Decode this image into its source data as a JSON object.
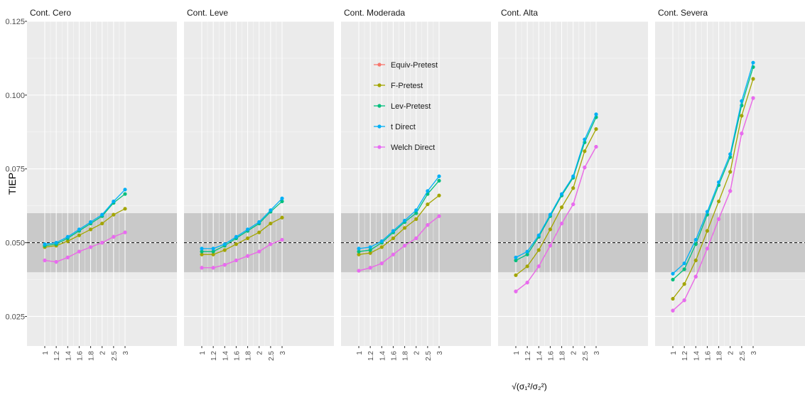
{
  "chart_data": {
    "type": "line",
    "facets": [
      "Cont. Cero",
      "Cont. Leve",
      "Cont. Moderada",
      "Cont. Alta",
      "Cont. Severa"
    ],
    "x": [
      "1",
      "1.2",
      "1.4",
      "1.6",
      "1.8",
      "2",
      "2.5",
      "3"
    ],
    "xlabel": "√(σ₁²/σ₂²)",
    "ylabel": "TIEP",
    "ylim": [
      0.015,
      0.125
    ],
    "yticks": [
      "0.025",
      "0.050",
      "0.075",
      "0.100",
      "0.125"
    ],
    "reference_line": 0.05,
    "band": [
      0.04,
      0.06
    ],
    "grid": true,
    "legend_position": "inside top of panel 3",
    "series": [
      {
        "name": "Equiv-Pretest",
        "color": "#f8766d",
        "values": [
          [
            0.044,
            0.0435,
            0.045,
            0.047,
            0.0485,
            0.05,
            0.052,
            0.0535
          ],
          [
            0.0415,
            0.0415,
            0.0425,
            0.044,
            0.0455,
            0.047,
            0.0495,
            0.051
          ],
          [
            0.0405,
            0.0415,
            0.043,
            0.046,
            0.049,
            0.0515,
            0.056,
            0.059
          ],
          [
            0.0335,
            0.0365,
            0.042,
            0.049,
            0.0565,
            0.063,
            0.0755,
            0.0825
          ],
          [
            0.027,
            0.0305,
            0.0385,
            0.048,
            0.058,
            0.0675,
            0.087,
            0.099
          ]
        ]
      },
      {
        "name": "F-Pretest",
        "color": "#a3a500",
        "values": [
          [
            0.0485,
            0.049,
            0.0505,
            0.0525,
            0.0545,
            0.0565,
            0.0595,
            0.0615
          ],
          [
            0.046,
            0.046,
            0.0475,
            0.0495,
            0.0515,
            0.0535,
            0.0565,
            0.0585
          ],
          [
            0.046,
            0.0465,
            0.0485,
            0.0515,
            0.055,
            0.058,
            0.063,
            0.066
          ],
          [
            0.039,
            0.042,
            0.0475,
            0.0545,
            0.062,
            0.0685,
            0.081,
            0.0885
          ],
          [
            0.031,
            0.036,
            0.044,
            0.054,
            0.064,
            0.074,
            0.093,
            0.1055
          ]
        ]
      },
      {
        "name": "Lev-Pretest",
        "color": "#00bf7d",
        "values": [
          [
            0.049,
            0.0495,
            0.0515,
            0.054,
            0.0565,
            0.059,
            0.0635,
            0.0665
          ],
          [
            0.047,
            0.047,
            0.049,
            0.0515,
            0.054,
            0.0565,
            0.0605,
            0.064
          ],
          [
            0.047,
            0.0475,
            0.05,
            0.0535,
            0.057,
            0.06,
            0.0665,
            0.071
          ],
          [
            0.044,
            0.046,
            0.052,
            0.059,
            0.066,
            0.072,
            0.084,
            0.0925
          ],
          [
            0.0375,
            0.041,
            0.0495,
            0.0595,
            0.0695,
            0.079,
            0.0965,
            0.1095
          ]
        ]
      },
      {
        "name": "t Direct",
        "color": "#00b0f6",
        "values": [
          [
            0.0495,
            0.05,
            0.052,
            0.0545,
            0.057,
            0.0595,
            0.064,
            0.068
          ],
          [
            0.048,
            0.048,
            0.0495,
            0.052,
            0.0545,
            0.057,
            0.061,
            0.065
          ],
          [
            0.048,
            0.0485,
            0.0505,
            0.054,
            0.0575,
            0.061,
            0.0675,
            0.0725
          ],
          [
            0.045,
            0.047,
            0.0525,
            0.0595,
            0.0665,
            0.0725,
            0.085,
            0.0935
          ],
          [
            0.0395,
            0.043,
            0.051,
            0.0605,
            0.0705,
            0.08,
            0.098,
            0.111
          ]
        ]
      },
      {
        "name": "Welch Direct",
        "color": "#e76bf3",
        "values": [
          [
            0.044,
            0.0435,
            0.045,
            0.047,
            0.0485,
            0.05,
            0.052,
            0.0535
          ],
          [
            0.0415,
            0.0415,
            0.0425,
            0.044,
            0.0455,
            0.047,
            0.0495,
            0.051
          ],
          [
            0.0405,
            0.0415,
            0.043,
            0.046,
            0.049,
            0.0515,
            0.056,
            0.059
          ],
          [
            0.0335,
            0.0365,
            0.042,
            0.049,
            0.0565,
            0.063,
            0.0755,
            0.0825
          ],
          [
            0.027,
            0.0305,
            0.0385,
            0.048,
            0.058,
            0.0675,
            0.087,
            0.099
          ]
        ]
      }
    ]
  }
}
